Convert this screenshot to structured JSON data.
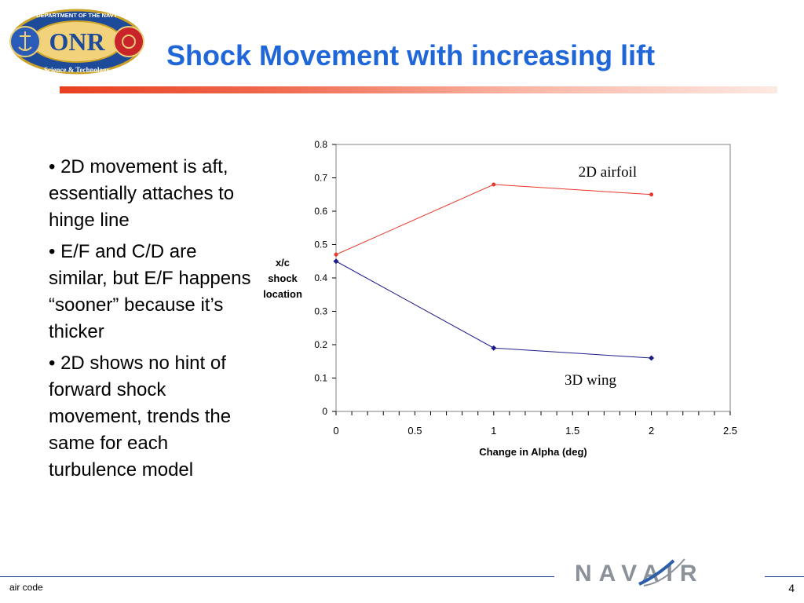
{
  "slide": {
    "title": "Shock Movement with increasing lift",
    "bullets": [
      "• 2D movement is aft, essentially attaches to hinge line",
      "• E/F and C/D are similar, but E/F happens “sooner” because it’s thicker",
      "• 2D  shows no hint of forward shock movement, trends the same for each turbulence model"
    ],
    "footer_left": "air code",
    "page_number": "4"
  },
  "logos": {
    "onr_top_text": "DEPARTMENT OF THE NAVY",
    "onr_letters": "ONR",
    "onr_bottom_text": "Science & Technology",
    "navair_text": "NAVAIR"
  },
  "colors": {
    "title": "#1f66d8",
    "series_2d": "#e8382d",
    "series_3d": "#1c1c8a",
    "footer_rule": "#1b3f8f"
  },
  "chart_data": {
    "type": "line",
    "xlabel": "Change in Alpha (deg)",
    "ylabel_lines": [
      "x/c",
      "shock",
      "location"
    ],
    "xlim": [
      0,
      2.5
    ],
    "ylim": [
      0,
      0.8
    ],
    "x_ticks": [
      "0",
      "0.5",
      "1",
      "1.5",
      "2",
      "2.5"
    ],
    "y_ticks": [
      "0",
      "0.1",
      "0.2",
      "0.3",
      "0.4",
      "0.5",
      "0.6",
      "0.7",
      "0.8"
    ],
    "x_minor_step": 0.1,
    "grid": false,
    "series": [
      {
        "name": "2D airfoil",
        "x": [
          0,
          1,
          2
        ],
        "y": [
          0.47,
          0.68,
          0.65
        ]
      },
      {
        "name": "3D wing",
        "x": [
          0,
          1,
          2
        ],
        "y": [
          0.45,
          0.19,
          0.16
        ]
      }
    ],
    "annotations": [
      "2D airfoil",
      "3D wing"
    ]
  }
}
